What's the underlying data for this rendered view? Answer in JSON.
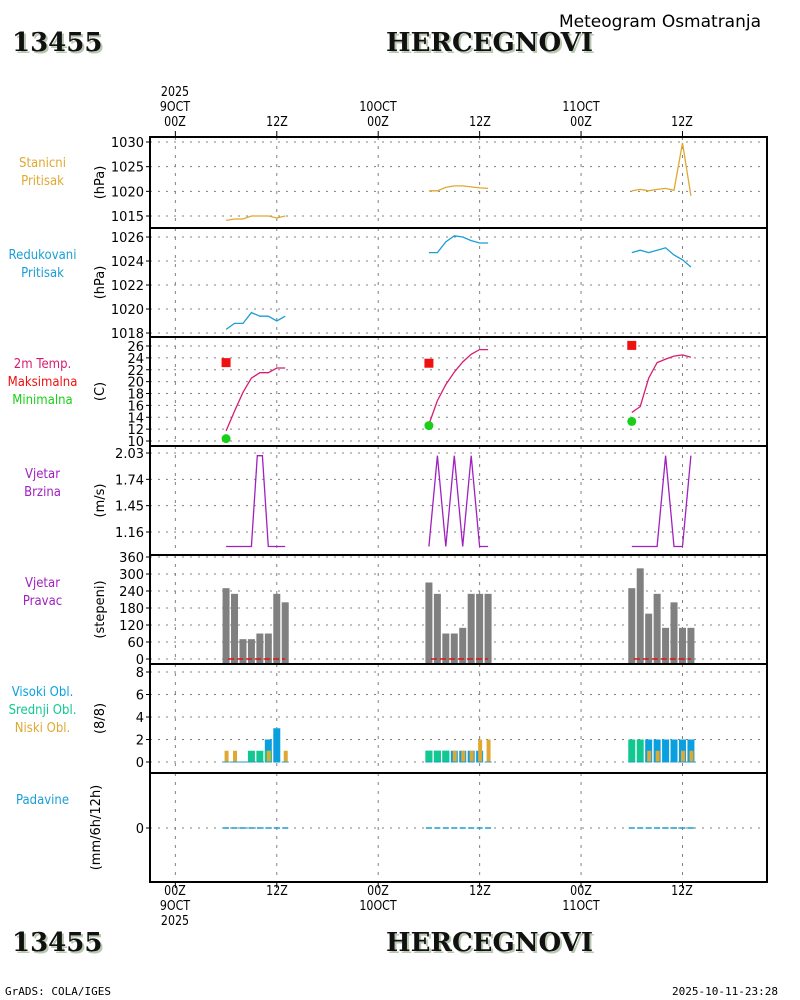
{
  "header": {
    "station_id": "13455",
    "station_name": "HERCEGNOVI",
    "subtitle": "Meteogram Osmatranja"
  },
  "footer": {
    "station_id": "13455",
    "station_name": "HERCEGNOVI",
    "software": "GrADS: COLA/IGES",
    "timestamp": "2025-10-11-23:28"
  },
  "time_axis": {
    "top_labels": [
      {
        "lines": [
          "2025",
          "9OCT",
          "00Z"
        ],
        "hour": 0
      },
      {
        "lines": [
          "12Z"
        ],
        "hour": 12
      },
      {
        "lines": [
          "10OCT",
          "00Z"
        ],
        "hour": 24
      },
      {
        "lines": [
          "12Z"
        ],
        "hour": 36
      },
      {
        "lines": [
          "11OCT",
          "00Z"
        ],
        "hour": 48
      },
      {
        "lines": [
          "12Z"
        ],
        "hour": 60
      }
    ],
    "bottom_labels": [
      {
        "lines": [
          "00Z",
          "9OCT",
          "2025"
        ],
        "hour": 0
      },
      {
        "lines": [
          "12Z"
        ],
        "hour": 12
      },
      {
        "lines": [
          "00Z",
          "10OCT"
        ],
        "hour": 24
      },
      {
        "lines": [
          "12Z"
        ],
        "hour": 36
      },
      {
        "lines": [
          "00Z",
          "11OCT"
        ],
        "hour": 48
      },
      {
        "lines": [
          "12Z"
        ],
        "hour": 60
      }
    ],
    "range_hours": [
      -3,
      70
    ]
  },
  "panels": [
    {
      "id": "station-pressure",
      "labels": [
        {
          "text": "Stanicni",
          "color": "#e0a832"
        },
        {
          "text": "Pritisak",
          "color": "#e0a832"
        }
      ],
      "unit": "(hPa)"
    },
    {
      "id": "reduced-pressure",
      "labels": [
        {
          "text": "Redukovani",
          "color": "#1a9ed6"
        },
        {
          "text": "Pritisak",
          "color": "#1a9ed6"
        }
      ],
      "unit": "(hPa)"
    },
    {
      "id": "temperature",
      "labels": [
        {
          "text": "2m Temp.",
          "color": "#d81b70"
        },
        {
          "text": "Maksimalna",
          "color": "#f01010"
        },
        {
          "text": "Minimalna",
          "color": "#18d018"
        }
      ],
      "unit": "(C)"
    },
    {
      "id": "wind-speed",
      "labels": [
        {
          "text": "Vjetar",
          "color": "#a020c0"
        },
        {
          "text": "Brzina",
          "color": "#a020c0"
        }
      ],
      "unit": "(m/s)"
    },
    {
      "id": "wind-direction",
      "labels": [
        {
          "text": "Vjetar",
          "color": "#a020c0"
        },
        {
          "text": "Pravac",
          "color": "#a020c0"
        }
      ],
      "unit": "(stepeni)"
    },
    {
      "id": "cloud-cover",
      "labels": [
        {
          "text": "Visoki Obl.",
          "color": "#0aa0e0"
        },
        {
          "text": "Srednji Obl.",
          "color": "#10c890"
        },
        {
          "text": "Niski Obl.",
          "color": "#e0a832"
        }
      ],
      "unit": "(8/8)"
    },
    {
      "id": "precipitation",
      "labels": [
        {
          "text": "Padavine",
          "color": "#1a9ed6"
        }
      ],
      "unit": "(mm/6h/12h)"
    }
  ],
  "chart_data": [
    {
      "type": "line",
      "title": "Stanicni Pritisak",
      "ylabel": "(hPa)",
      "ylim": [
        1013.5,
        1031
      ],
      "yticks": [
        1015,
        1020,
        1025,
        1030
      ],
      "color": "#e0a832",
      "series": [
        {
          "name": "day1",
          "x": [
            6,
            7,
            8,
            9,
            10,
            11,
            12,
            13
          ],
          "y": [
            1014.1,
            1014.4,
            1014.4,
            1015.0,
            1015.0,
            1015.0,
            1014.6,
            1015.0
          ]
        },
        {
          "name": "day2",
          "x": [
            30,
            31,
            32,
            33,
            34,
            35,
            36,
            37
          ],
          "y": [
            1020.1,
            1020.1,
            1020.8,
            1021.1,
            1021.1,
            1020.9,
            1020.7,
            1020.6
          ]
        },
        {
          "name": "day3",
          "x": [
            54,
            55,
            56,
            57,
            58,
            59,
            60,
            61
          ],
          "y": [
            1020.1,
            1020.4,
            1020.1,
            1020.4,
            1020.6,
            1020.2,
            1029.8,
            1019.1
          ]
        }
      ]
    },
    {
      "type": "line",
      "title": "Redukovani Pritisak",
      "ylabel": "(hPa)",
      "ylim": [
        1017.8,
        1026.6
      ],
      "yticks": [
        1018,
        1020,
        1022,
        1024,
        1026
      ],
      "color": "#1a9ed6",
      "series": [
        {
          "name": "day1",
          "x": [
            6,
            7,
            8,
            9,
            10,
            11,
            12,
            13
          ],
          "y": [
            1018.3,
            1018.8,
            1018.8,
            1019.7,
            1019.4,
            1019.4,
            1019.0,
            1019.4
          ]
        },
        {
          "name": "day2",
          "x": [
            30,
            31,
            32,
            33,
            34,
            35,
            36,
            37
          ],
          "y": [
            1024.7,
            1024.7,
            1025.6,
            1026.1,
            1026.0,
            1025.7,
            1025.5,
            1025.5
          ]
        },
        {
          "name": "day3",
          "x": [
            54,
            55,
            56,
            57,
            58,
            59,
            60,
            61
          ],
          "y": [
            1024.7,
            1024.9,
            1024.7,
            1024.9,
            1025.1,
            1024.5,
            1024.1,
            1023.5
          ]
        }
      ]
    },
    {
      "type": "line",
      "title": "2m Temp.",
      "ylabel": "(C)",
      "ylim": [
        9.5,
        27
      ],
      "yticks": [
        10,
        12,
        14,
        16,
        18,
        20,
        22,
        24,
        26
      ],
      "color": "#d81b70",
      "series": [
        {
          "name": "day1",
          "x": [
            6,
            7,
            8,
            9,
            10,
            11,
            12,
            13
          ],
          "y": [
            11.7,
            15.0,
            18.2,
            20.6,
            21.5,
            21.5,
            22.3,
            22.3
          ]
        },
        {
          "name": "day2",
          "x": [
            30,
            31,
            32,
            33,
            34,
            35,
            36,
            37
          ],
          "y": [
            12.8,
            16.8,
            19.5,
            21.6,
            23.3,
            24.6,
            25.4,
            25.4
          ]
        },
        {
          "name": "day3",
          "x": [
            54,
            55,
            56,
            57,
            58,
            59,
            60,
            61
          ],
          "y": [
            14.8,
            15.8,
            20.6,
            23.2,
            23.8,
            24.3,
            24.5,
            24.1
          ]
        }
      ],
      "max_points": {
        "color": "#f01010",
        "x": [
          6,
          30,
          54
        ],
        "y": [
          23.2,
          23.1,
          26.1
        ]
      },
      "min_points": {
        "color": "#18d018",
        "x": [
          6,
          30,
          54
        ],
        "y": [
          10.4,
          12.6,
          13.3
        ]
      }
    },
    {
      "type": "line",
      "title": "Vjetar Brzina",
      "ylabel": "(m/s)",
      "ylim": [
        1.03,
        2.05
      ],
      "yticks": [
        1.16,
        1.45,
        1.74,
        2.03
      ],
      "yticklabels": [
        "1.16",
        "1.45",
        "1.74",
        "2.03"
      ],
      "color": "#a020c0",
      "series": [
        {
          "name": "day1",
          "x": [
            6,
            7,
            8,
            9,
            9.7,
            10.3,
            11,
            12,
            13
          ],
          "y": [
            1.0,
            1.0,
            1.0,
            1.0,
            2.0,
            2.0,
            1.0,
            1.0,
            1.0
          ]
        },
        {
          "name": "day2",
          "x": [
            30,
            31,
            32,
            33,
            34,
            35,
            36,
            37
          ],
          "y": [
            1.0,
            2.0,
            1.0,
            2.0,
            1.0,
            2.0,
            1.0,
            1.0
          ]
        },
        {
          "name": "day3",
          "x": [
            54,
            55,
            56,
            57,
            58,
            59,
            60,
            61
          ],
          "y": [
            1.0,
            1.0,
            1.0,
            1.0,
            2.0,
            1.0,
            1.0,
            2.0
          ]
        }
      ]
    },
    {
      "type": "bar",
      "title": "Vjetar Pravac",
      "ylabel": "(stepeni)",
      "ylim": [
        -2,
        362
      ],
      "yticks": [
        0,
        60,
        120,
        180,
        240,
        300,
        360
      ],
      "color": "#808080",
      "zero_line_color": "#e01010",
      "series": [
        {
          "name": "day1",
          "x": [
            6,
            7,
            8,
            9,
            10,
            11,
            12,
            13
          ],
          "y": [
            250,
            230,
            70,
            70,
            90,
            90,
            230,
            200
          ]
        },
        {
          "name": "day2",
          "x": [
            30,
            31,
            32,
            33,
            34,
            35,
            36,
            37
          ],
          "y": [
            270,
            230,
            90,
            90,
            110,
            230,
            230,
            230
          ]
        },
        {
          "name": "day3",
          "x": [
            54,
            55,
            56,
            57,
            58,
            59,
            60,
            61
          ],
          "y": [
            250,
            320,
            160,
            230,
            110,
            200,
            110,
            110
          ]
        }
      ]
    },
    {
      "type": "bar",
      "title": "Oblacnost",
      "ylabel": "(8/8)",
      "ylim": [
        -0.3,
        8.8
      ],
      "yticks": [
        0,
        2,
        4,
        6,
        8
      ],
      "series": [
        {
          "name": "Visoki Obl.",
          "color": "#0aa0e0",
          "x": [
            6,
            7,
            8,
            9,
            10,
            11,
            12,
            13,
            30,
            31,
            32,
            33,
            34,
            35,
            36,
            37,
            54,
            55,
            56,
            57,
            58,
            59,
            60,
            61
          ],
          "y": [
            0,
            0,
            0,
            0,
            0,
            2,
            3,
            0,
            1,
            1,
            1,
            1,
            1,
            1,
            1,
            0,
            0,
            0,
            2,
            2,
            2,
            2,
            2,
            2
          ]
        },
        {
          "name": "Srednji Obl.",
          "color": "#10c890",
          "x": [
            6,
            7,
            8,
            9,
            10,
            11,
            12,
            13,
            30,
            31,
            32,
            33,
            34,
            35,
            36,
            37,
            54,
            55,
            56,
            57,
            58,
            59,
            60,
            61
          ],
          "y": [
            0,
            0,
            0,
            1,
            1,
            1,
            0,
            0,
            1,
            1,
            1,
            0,
            0,
            0,
            0,
            0,
            2,
            2,
            0,
            0,
            0,
            0,
            0,
            0
          ]
        },
        {
          "name": "Niski Obl.",
          "color": "#e0a832",
          "x": [
            6,
            7,
            8,
            9,
            10,
            11,
            12,
            13,
            30,
            31,
            32,
            33,
            34,
            35,
            36,
            37,
            54,
            55,
            56,
            57,
            58,
            59,
            60,
            61
          ],
          "y": [
            1,
            1,
            0,
            0,
            0,
            1,
            0,
            1,
            0,
            0,
            0,
            1,
            1,
            1,
            2,
            2,
            0,
            0,
            1,
            1,
            0,
            0,
            1,
            1
          ]
        }
      ]
    },
    {
      "type": "bar",
      "title": "Padavine",
      "ylabel": "(mm/6h/12h)",
      "ylim": [
        -1,
        1
      ],
      "yticks": [
        0
      ],
      "color": "#1a9ed6",
      "series": [
        {
          "name": "day1",
          "x": [
            6,
            7,
            8,
            9,
            10,
            11,
            12,
            13
          ],
          "y": [
            0,
            0,
            0,
            0,
            0,
            0,
            0,
            0
          ]
        },
        {
          "name": "day2",
          "x": [
            30,
            31,
            32,
            33,
            34,
            35,
            36,
            37
          ],
          "y": [
            0,
            0,
            0,
            0,
            0,
            0,
            0,
            0
          ]
        },
        {
          "name": "day3",
          "x": [
            54,
            55,
            56,
            57,
            58,
            59,
            60,
            61
          ],
          "y": [
            0,
            0,
            0,
            0,
            0,
            0,
            0,
            0
          ]
        }
      ]
    }
  ]
}
